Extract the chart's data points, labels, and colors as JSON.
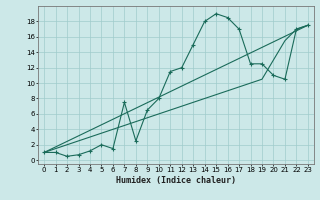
{
  "xlabel": "Humidex (Indice chaleur)",
  "bg_color": "#cce8e8",
  "line_color": "#1a6b5a",
  "grid_color": "#a0cccc",
  "xlim": [
    -0.5,
    23.5
  ],
  "ylim": [
    -0.5,
    20
  ],
  "xticks": [
    0,
    1,
    2,
    3,
    4,
    5,
    6,
    7,
    8,
    9,
    10,
    11,
    12,
    13,
    14,
    15,
    16,
    17,
    18,
    19,
    20,
    21,
    22,
    23
  ],
  "yticks": [
    0,
    2,
    4,
    6,
    8,
    10,
    12,
    14,
    16,
    18
  ],
  "curve1_x": [
    0,
    1,
    2,
    3,
    4,
    5,
    6,
    7,
    8,
    9,
    10,
    11,
    12,
    13,
    14,
    15,
    16,
    17,
    18,
    19,
    20,
    21,
    22,
    23
  ],
  "curve1_y": [
    1,
    1,
    0.5,
    0.7,
    1.2,
    2.0,
    1.5,
    7.5,
    2.5,
    6.5,
    8,
    11.5,
    12,
    15,
    18,
    19,
    18.5,
    17,
    12.5,
    12.5,
    11,
    10.5,
    17,
    17.5
  ],
  "curve2_x": [
    0,
    23
  ],
  "curve2_y": [
    1,
    17.5
  ],
  "curve3_x": [
    0,
    19,
    21,
    22,
    23
  ],
  "curve3_y": [
    1,
    10.5,
    15.5,
    17,
    17.5
  ]
}
